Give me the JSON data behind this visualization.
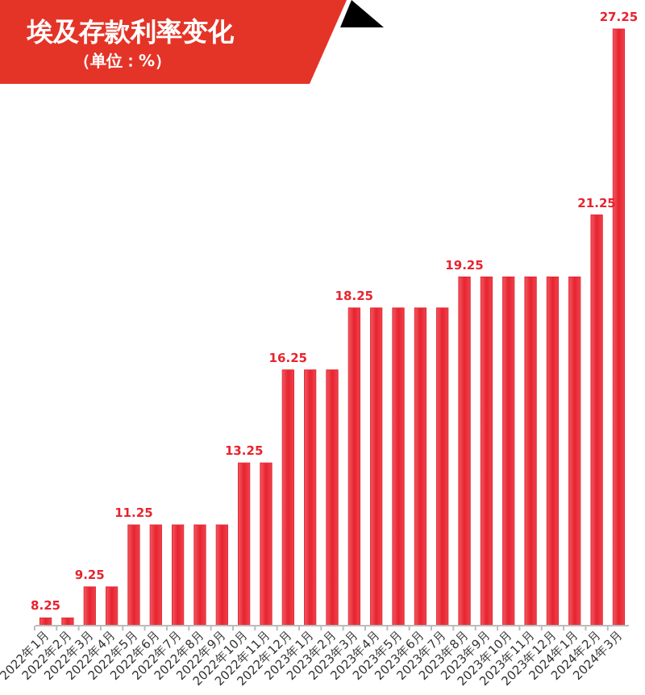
{
  "chart_data": {
    "type": "bar",
    "title": "埃及存款利率变化",
    "subtitle": "（单位：%）",
    "categories": [
      "2022年1月",
      "2022年2月",
      "2022年3月",
      "2022年4月",
      "2022年5月",
      "2022年6月",
      "2022年7月",
      "2022年8月",
      "2022年9月",
      "2022年10月",
      "2022年11月",
      "2022年12月",
      "2023年1月",
      "2023年2月",
      "2023年3月",
      "2023年4月",
      "2023年5月",
      "2023年6月",
      "2023年7月",
      "2023年8月",
      "2023年9月",
      "2023年10月",
      "2023年11月",
      "2023年12月",
      "2024年1月",
      "2024年2月",
      "2024年3月"
    ],
    "values": [
      8.25,
      8.25,
      9.25,
      9.25,
      11.25,
      11.25,
      11.25,
      11.25,
      11.25,
      13.25,
      13.25,
      16.25,
      16.25,
      16.25,
      18.25,
      18.25,
      18.25,
      18.25,
      18.25,
      19.25,
      19.25,
      19.25,
      19.25,
      19.25,
      19.25,
      21.25,
      27.25
    ],
    "value_labels": [
      "8.25",
      null,
      "9.25",
      null,
      "11.25",
      null,
      null,
      null,
      null,
      "13.25",
      null,
      "16.25",
      null,
      null,
      "18.25",
      null,
      null,
      null,
      null,
      "19.25",
      null,
      null,
      null,
      null,
      null,
      "21.25",
      "27.25"
    ],
    "color": "#e8232f",
    "ylim": [
      8,
      27.25
    ],
    "tick_labels": "x"
  }
}
